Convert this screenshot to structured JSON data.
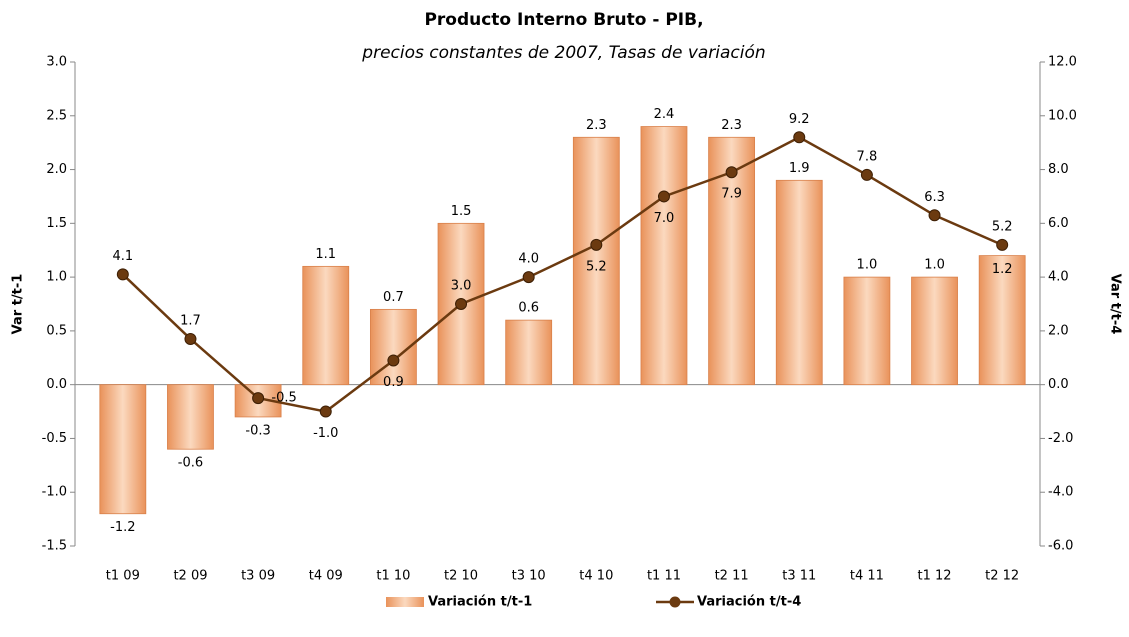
{
  "chart_data": {
    "type": "bar-line",
    "title": "Producto Interno Bruto - PIB,",
    "subtitle": "precios constantes de 2007, Tasas de variación",
    "y_label": "Var t/t-1",
    "y2_label": "Var t/t-4",
    "categories": [
      "t1 09",
      "t2 09",
      "t3 09",
      "t4 09",
      "t1 10",
      "t2 10",
      "t3 10",
      "t4 10",
      "t1 11",
      "t2 11",
      "t3 11",
      "t4 11",
      "t1 12",
      "t2 12"
    ],
    "series": [
      {
        "name": "Variación t/t-1",
        "type": "bar",
        "color": "#f4b183",
        "axis": "y",
        "values": [
          -1.2,
          -0.6,
          -0.3,
          1.1,
          0.7,
          1.5,
          0.6,
          2.3,
          2.4,
          2.3,
          1.9,
          1.0,
          1.0,
          1.2
        ],
        "value_labels": [
          "-1.2",
          "-0.6",
          "-0.3",
          "1.1",
          "0.7",
          "1.5",
          "0.6",
          "2.3",
          "2.4",
          "2.3",
          "1.9",
          "1.0",
          "1.0",
          "1.2"
        ]
      },
      {
        "name": "Variación t/t-4",
        "type": "line",
        "color": "#6b3a10",
        "axis": "y2",
        "values": [
          4.1,
          1.7,
          -0.5,
          -1.0,
          0.9,
          3.0,
          4.0,
          5.2,
          7.0,
          7.9,
          9.2,
          7.8,
          6.3,
          5.2
        ],
        "value_labels": [
          "4.1",
          "1.7",
          "-0.5",
          "-1.0",
          "0.9",
          "3.0",
          "4.0",
          "5.2",
          "7.0",
          "7.9",
          "9.2",
          "7.8",
          "6.3",
          "5.2"
        ]
      }
    ],
    "ylim": [
      -1.5,
      3.0
    ],
    "yticks": [
      -1.5,
      {
        "value": -1,
        "label": "-1.0"
      },
      -0.5,
      {
        "value": 0,
        "label": "0.0"
      },
      0.5,
      {
        "value": 1,
        "label": "1.0"
      },
      1.5,
      {
        "value": 2,
        "label": "2.0"
      },
      2.5,
      {
        "value": 3,
        "label": "3.0"
      }
    ],
    "y2lim": [
      -6,
      12
    ],
    "y2ticks": [
      {
        "value": -6,
        "label": "-6.0"
      },
      {
        "value": -4,
        "label": "-4.0"
      },
      {
        "value": -2,
        "label": "-2.0"
      },
      {
        "value": 0,
        "label": "0.0"
      },
      {
        "value": 2,
        "label": "2.0"
      },
      {
        "value": 4,
        "label": "4.0"
      },
      {
        "value": 6,
        "label": "6.0"
      },
      {
        "value": 8,
        "label": "8.0"
      },
      {
        "value": 10,
        "label": "10.0"
      },
      {
        "value": 12,
        "label": "12.0"
      }
    ],
    "y2_negative_tick_color": "#e00000",
    "legend": "bottom"
  }
}
